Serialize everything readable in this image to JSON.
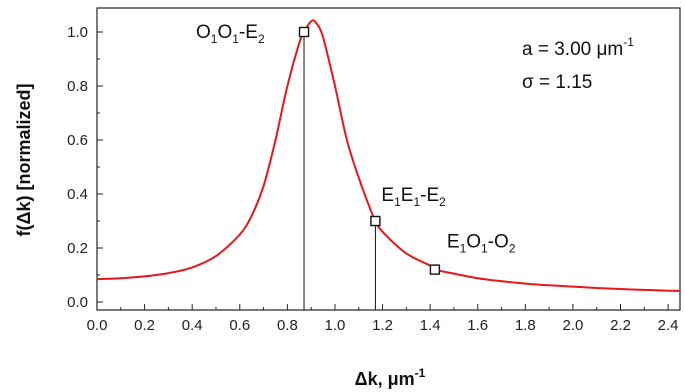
{
  "chart_data": {
    "type": "line",
    "xlabel_main": "Δk, μm",
    "xlabel_sup": "-1",
    "ylabel": "f(Δk) [normalized]",
    "xlim": [
      0.0,
      2.45
    ],
    "ylim": [
      0.0,
      1.06
    ],
    "x_ticks": [
      "0.0",
      "0.2",
      "0.4",
      "0.6",
      "0.8",
      "1.0",
      "1.2",
      "1.4",
      "1.6",
      "1.8",
      "2.0",
      "2.2",
      "2.4"
    ],
    "x_tick_values": [
      0.0,
      0.2,
      0.4,
      0.6,
      0.8,
      1.0,
      1.2,
      1.4,
      1.6,
      1.8,
      2.0,
      2.2,
      2.4
    ],
    "y_ticks": [
      "0.0",
      "0.2",
      "0.4",
      "0.6",
      "0.8",
      "1.0"
    ],
    "y_tick_values": [
      0.0,
      0.2,
      0.4,
      0.6,
      0.8,
      1.0
    ],
    "series": [
      {
        "color": "#e8171b",
        "x": [
          0.0,
          0.1,
          0.2,
          0.3,
          0.4,
          0.5,
          0.6,
          0.65,
          0.7,
          0.75,
          0.8,
          0.85,
          0.87,
          0.9,
          0.92,
          0.95,
          1.0,
          1.05,
          1.1,
          1.15,
          1.17,
          1.2,
          1.3,
          1.4,
          1.42,
          1.5,
          1.6,
          1.7,
          1.8,
          1.9,
          2.0,
          2.1,
          2.2,
          2.3,
          2.4,
          2.45
        ],
        "y": [
          0.085,
          0.088,
          0.095,
          0.107,
          0.128,
          0.17,
          0.25,
          0.32,
          0.43,
          0.6,
          0.8,
          0.96,
          1.0,
          1.04,
          1.035,
          0.98,
          0.8,
          0.6,
          0.46,
          0.34,
          0.3,
          0.26,
          0.18,
          0.135,
          0.12,
          0.105,
          0.088,
          0.077,
          0.068,
          0.062,
          0.057,
          0.052,
          0.048,
          0.045,
          0.042,
          0.041
        ]
      }
    ],
    "markers": [
      {
        "x": 0.87,
        "y": 1.0,
        "label_parts": [
          {
            "t": "O",
            "s": "n"
          },
          {
            "t": "1",
            "s": "sub"
          },
          {
            "t": "O",
            "s": "n"
          },
          {
            "t": "1",
            "s": "sub"
          },
          {
            "t": "-E",
            "s": "n"
          },
          {
            "t": "2",
            "s": "sub"
          }
        ]
      },
      {
        "x": 1.17,
        "y": 0.3,
        "label_parts": [
          {
            "t": "E",
            "s": "n"
          },
          {
            "t": "1",
            "s": "sub"
          },
          {
            "t": "E",
            "s": "n"
          },
          {
            "t": "1",
            "s": "sub"
          },
          {
            "t": "-E",
            "s": "n"
          },
          {
            "t": "2",
            "s": "sub"
          }
        ]
      },
      {
        "x": 1.42,
        "y": 0.12,
        "label_parts": [
          {
            "t": "E",
            "s": "n"
          },
          {
            "t": "1",
            "s": "sub"
          },
          {
            "t": "O",
            "s": "n"
          },
          {
            "t": "1",
            "s": "sub"
          },
          {
            "t": "-O",
            "s": "n"
          },
          {
            "t": "2",
            "s": "sub"
          }
        ]
      }
    ],
    "annotation": {
      "line1_main": "a = 3.00 μm",
      "line1_sup": "-1",
      "line2": "σ = 1.15"
    }
  }
}
